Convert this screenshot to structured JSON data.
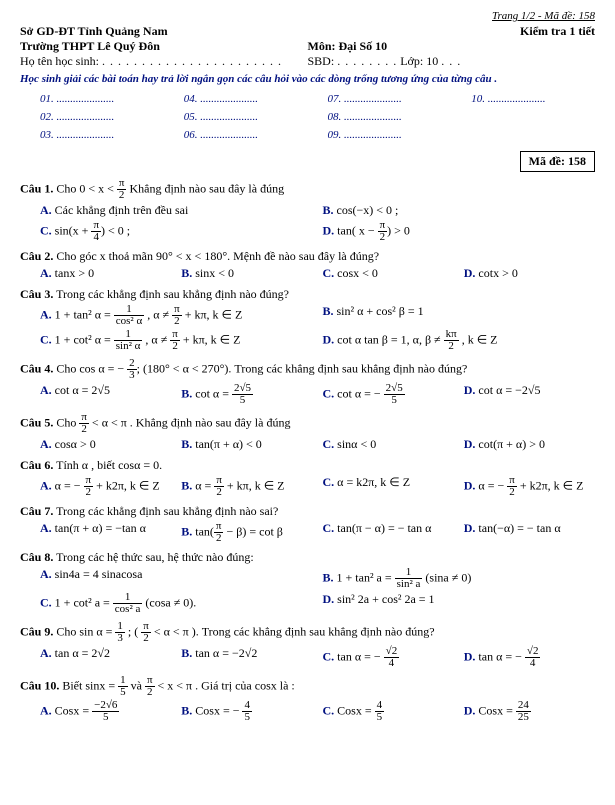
{
  "page_header": "Trang 1/2 - Mã đề: 158",
  "header": {
    "org": "Sở GD-ĐT Tỉnh Quảng Nam",
    "exam_title": "Kiểm tra 1 tiết",
    "school": "Trường THPT Lê Quý Đôn",
    "subject": "Môn: Đại Số 10",
    "student_name_label": "Họ tên học sinh:",
    "sbd_label": "SBD:",
    "class_label": "Lớp: 10",
    "instruction": "Học sinh giải các bài toán hay trả lời ngắn gọn các câu hỏi vào các dòng trống tương ứng của từng câu .",
    "exam_code_label": "Mã đề: 158"
  },
  "answer_slots": {
    "r1": [
      "01. .....................",
      "04. .....................",
      "07. .....................",
      "10. ....................."
    ],
    "r2": [
      "02. .....................",
      "05. .....................",
      "08. ....................."
    ],
    "r3": [
      "03. .....................",
      "06. .....................",
      "09. ....................."
    ]
  },
  "q1": {
    "label": "Câu 1.",
    "text_pre": "Cho 0 < x < ",
    "frac_num": "π",
    "frac_den": "2",
    "text_post": " Khẳng định nào sau đây là đúng",
    "A": "Các khẳng định trên đều sai",
    "B": "cos(−x) < 0 ;",
    "C_pre": "sin(x + ",
    "C_post": ") < 0 ;",
    "D_pre": "tan( x − ",
    "D_post": ") > 0"
  },
  "q2": {
    "label": "Câu 2.",
    "text": "Cho góc x thoả mãn 90° < x < 180°. Mệnh đề nào sau đây là đúng?",
    "A": "tanx > 0",
    "B": "sinx < 0",
    "C": "cosx < 0",
    "D": "cotx > 0"
  },
  "q3": {
    "label": "Câu 3.",
    "text": "Trong các khẳng định sau khẳng định nào đúng?",
    "A_pre": "1 + tan² α = ",
    "A_frac_num": "1",
    "A_frac_den": "cos² α",
    "A_post": " ,   α ≠ ",
    "A_post2": " + kπ, k ∈ Z",
    "B": "sin² α + cos² β = 1",
    "C_pre": "1 + cot² α = ",
    "C_frac_num": "1",
    "C_frac_den": "sin² α",
    "C_post": " ,   α ≠ ",
    "C_post2": " + kπ, k ∈ Z",
    "D_pre": "cot α tan β = 1,   α, β ≠ ",
    "D_frac_num": "kπ",
    "D_frac_den": "2",
    "D_post": " , k ∈ Z"
  },
  "q4": {
    "label": "Câu 4.",
    "text_pre": "Cho cos α = − ",
    "frac_num": "2",
    "frac_den": "3",
    "text_post": "; (180° < α < 270°). Trong các khẳng định sau khẳng định nào đúng?",
    "A": "cot α = 2√5",
    "B_pre": "cot α = ",
    "B_num": "2√5",
    "B_den": "5",
    "C_pre": "cot α = − ",
    "C_num": "2√5",
    "C_den": "5",
    "D": "cot α = −2√5"
  },
  "q5": {
    "label": "Câu 5.",
    "text_pre": "Cho ",
    "frac_num": "π",
    "frac_den": "2",
    "text_post": " < α < π . Khẳng định nào sau đây là đúng",
    "A": "cosα > 0",
    "B": "tan(π + α) < 0",
    "C": "sinα < 0",
    "D": "cot(π + α) > 0"
  },
  "q6": {
    "label": "Câu 6.",
    "text": "Tính α , biết cosα = 0.",
    "A_pre": "α = − ",
    "A_num": "π",
    "A_den": "2",
    "A_post": " + k2π,  k ∈ Z",
    "B_pre": "α = ",
    "B_num": "π",
    "B_den": "2",
    "B_post": " + kπ,  k ∈ Z",
    "C": "α = k2π,  k ∈ Z",
    "D_pre": "α = − ",
    "D_num": "π",
    "D_den": "2",
    "D_post": " + k2π,  k ∈ Z"
  },
  "q7": {
    "label": "Câu 7.",
    "text": "Trong các khẳng định sau khẳng định nào sai?",
    "A": "tan(π + α) = −tan α",
    "B_pre": "tan(",
    "B_num": "π",
    "B_den": "2",
    "B_post": " − β) = cot β",
    "C": "tan(π − α) = − tan α",
    "D": "tan(−α) = − tan α"
  },
  "q8": {
    "label": "Câu 8.",
    "text": "Trong các hệ thức sau, hệ thức nào đúng:",
    "A": "sin4a = 4 sinacosa",
    "B_pre": "1 + tan² a = ",
    "B_num": "1",
    "B_den": "sin² a",
    "B_post": "  (sina ≠ 0)",
    "C_pre": "1 + cot² a = ",
    "C_num": "1",
    "C_den": "cos² a",
    "C_post": "  (cosa ≠ 0).",
    "D": "sin² 2a + cos² 2a = 1"
  },
  "q9": {
    "label": "Câu 9.",
    "text_pre": "Cho sin α = ",
    "frac_num": "1",
    "frac_den": "3",
    "text_mid": " ; ( ",
    "frac2_num": "π",
    "frac2_den": "2",
    "text_post": " < α < π ). Trong các khẳng định sau khẳng định nào đúng?",
    "A": "tan α = 2√2",
    "B": "tan α = −2√2",
    "C_pre": "tan α = − ",
    "C_num": "√2",
    "C_den": "4",
    "D_pre": "tan α = − ",
    "D_num": "√2",
    "D_den": "4"
  },
  "q10": {
    "label": "Câu 10.",
    "text_pre": "Biết sinx = ",
    "frac1_num": "1",
    "frac1_den": "5",
    "text_mid": "  và ",
    "frac2_num": "π",
    "frac2_den": "2",
    "text_post": " < x < π  . Giá trị của cosx là :",
    "A_pre": "Cosx = ",
    "A_num": "−2√6",
    "A_den": "5",
    "B_pre": "Cosx = − ",
    "B_num": "4",
    "B_den": "5",
    "C_pre": "Cosx = ",
    "C_num": "4",
    "C_den": "5",
    "D_pre": "Cosx = ",
    "D_num_outer": "√",
    "D_inner_num": "24",
    "D_inner_den": "25"
  }
}
